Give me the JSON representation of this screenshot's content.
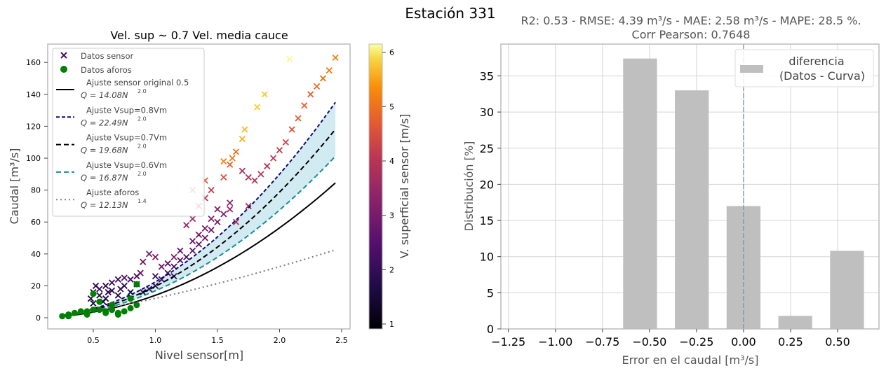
{
  "suptitle": "Estación 331",
  "chart_data": [
    {
      "type": "scatter",
      "title": "Vel. sup ~ 0.7 Vel. media cauce",
      "xlabel": "Nivel sensor[m]",
      "ylabel": "Caudal [m³/s]",
      "xlim": [
        0.133,
        2.568
      ],
      "ylim": [
        -7,
        171.5
      ],
      "xticks": [
        0.5,
        1.0,
        1.5,
        2.0,
        2.5
      ],
      "xtick_labels": [
        "0.5",
        "1.0",
        "1.5",
        "2.0",
        "2.5"
      ],
      "yticks": [
        0,
        20,
        40,
        60,
        80,
        100,
        120,
        140,
        160
      ],
      "ytick_labels": [
        "0",
        "20",
        "40",
        "60",
        "80",
        "100",
        "120",
        "140",
        "160"
      ],
      "colorbar": {
        "label": "V. superficial sensor [m/s]",
        "range": [
          0.91,
          6.15
        ],
        "ticks": [
          1,
          2,
          3,
          4,
          5,
          6
        ],
        "tick_labels": [
          "1",
          "2",
          "3",
          "4",
          "5",
          "6"
        ],
        "colormap": "inferno"
      },
      "legend_position": "upper-left",
      "legend": [
        {
          "label": "Datos sensor"
        },
        {
          "label": "Datos aforos"
        },
        {
          "label": "Ajuste sensor original 0.5",
          "eq": "Q = 14.08N",
          "exp": "2.0"
        },
        {
          "label": "Ajuste Vsup=0.8Vm",
          "eq": "Q = 22.49N",
          "exp": "2.0"
        },
        {
          "label": "Ajuste Vsup=0.7Vm",
          "eq": "Q = 19.68N",
          "exp": "2.0"
        },
        {
          "label": "Ajuste Vsup=0.6Vm",
          "eq": "Q = 16.87N",
          "exp": "2.0"
        },
        {
          "label": "Ajuste aforos",
          "eq": "Q = 12.13N",
          "exp": "1.4"
        }
      ],
      "fits": [
        {
          "name": "sensor-original",
          "a": 14.08,
          "b": 2.0,
          "color": "#000000",
          "dash": "",
          "x_range": [
            0.25,
            2.45
          ]
        },
        {
          "name": "vsup-0.8",
          "a": 22.49,
          "b": 2.0,
          "color": "#0b0b6e",
          "dash": "5,3",
          "x_range": [
            0.25,
            2.45
          ]
        },
        {
          "name": "vsup-0.7",
          "a": 19.68,
          "b": 2.0,
          "color": "#000000",
          "dash": "7,4",
          "x_range": [
            0.25,
            2.45
          ]
        },
        {
          "name": "vsup-0.6",
          "a": 16.87,
          "b": 2.0,
          "color": "#139191",
          "dash": "7,4",
          "x_range": [
            0.25,
            2.45
          ]
        },
        {
          "name": "aforos",
          "a": 12.13,
          "b": 1.4,
          "color": "#808080",
          "dash": "2,4",
          "x_range": [
            0.25,
            2.45
          ]
        }
      ],
      "fill_between": [
        "vsup-0.6",
        "vsup-0.8"
      ],
      "sensor_points": [
        [
          0.48,
          12,
          1.6
        ],
        [
          0.5,
          16,
          1.8
        ],
        [
          0.55,
          18,
          2
        ],
        [
          0.6,
          20,
          2
        ],
        [
          0.65,
          22,
          2.1
        ],
        [
          0.7,
          24,
          2.2
        ],
        [
          0.75,
          25,
          2.3
        ],
        [
          0.8,
          24,
          2.2
        ],
        [
          0.85,
          26,
          2.3
        ],
        [
          0.5,
          9,
          1.4
        ],
        [
          0.6,
          12,
          1.5
        ],
        [
          0.7,
          14,
          1.6
        ],
        [
          0.8,
          16,
          1.7
        ],
        [
          0.9,
          16,
          1.8
        ],
        [
          0.55,
          14,
          1.7
        ],
        [
          0.65,
          17,
          1.9
        ],
        [
          0.75,
          20,
          2.0
        ],
        [
          0.85,
          21,
          2.1
        ],
        [
          0.52,
          20,
          2.0
        ],
        [
          0.62,
          16,
          1.8
        ],
        [
          0.72,
          18,
          1.9
        ],
        [
          0.58,
          10,
          1.5
        ],
        [
          0.95,
          18,
          2
        ],
        [
          1.0,
          20,
          2.1
        ],
        [
          1.05,
          24,
          2.2
        ],
        [
          1.1,
          28,
          2.3
        ],
        [
          1.15,
          32,
          2.4
        ],
        [
          1.2,
          36,
          2.5
        ],
        [
          1.25,
          38,
          2.5
        ],
        [
          1.3,
          42,
          2.6
        ],
        [
          1.35,
          46,
          2.7
        ],
        [
          1.4,
          50,
          2.8
        ],
        [
          1.45,
          55,
          2.9
        ],
        [
          1.5,
          60,
          3.0
        ],
        [
          1.55,
          65,
          3.1
        ],
        [
          1.6,
          72,
          3.3
        ],
        [
          1.2,
          42,
          2.7
        ],
        [
          1.3,
          48,
          2.8
        ],
        [
          1.4,
          56,
          3.0
        ],
        [
          1.5,
          68,
          3.2
        ],
        [
          1.1,
          34,
          2.5
        ],
        [
          1.0,
          26,
          2.3
        ],
        [
          1.15,
          26,
          2.2
        ],
        [
          1.35,
          52,
          2.9
        ],
        [
          1.45,
          62,
          3.1
        ],
        [
          0.88,
          28,
          2.8
        ],
        [
          0.9,
          35,
          2.9
        ],
        [
          0.95,
          40,
          3.0
        ],
        [
          1.0,
          38,
          3.1
        ],
        [
          1.05,
          32,
          2.8
        ],
        [
          1.15,
          38,
          3.2
        ],
        [
          1.25,
          58,
          3.5
        ],
        [
          1.3,
          62,
          3.6
        ],
        [
          1.35,
          70,
          3.8
        ],
        [
          1.4,
          75,
          4.0
        ],
        [
          1.45,
          80,
          4.2
        ],
        [
          1.3,
          80,
          4.6
        ],
        [
          1.4,
          86,
          4.7
        ],
        [
          1.55,
          88,
          4.5
        ],
        [
          1.6,
          96,
          4.8
        ],
        [
          1.65,
          104,
          5.0
        ],
        [
          1.7,
          112,
          5.6
        ],
        [
          1.72,
          118,
          5.7
        ],
        [
          1.82,
          132,
          5.8
        ],
        [
          1.88,
          140,
          5.8
        ],
        [
          2.08,
          162,
          6.1
        ],
        [
          1.55,
          98,
          5.2
        ],
        [
          1.62,
          100,
          5.1
        ],
        [
          1.7,
          92,
          3.8
        ],
        [
          1.75,
          88,
          3.9
        ],
        [
          1.8,
          86,
          4.0
        ],
        [
          1.85,
          90,
          4.0
        ],
        [
          1.9,
          95,
          4.1
        ],
        [
          1.95,
          100,
          4.1
        ],
        [
          2.0,
          105,
          4.2
        ],
        [
          2.05,
          110,
          4.3
        ],
        [
          2.1,
          118,
          4.6
        ],
        [
          2.15,
          125,
          4.7
        ],
        [
          2.2,
          133,
          4.8
        ],
        [
          2.25,
          140,
          4.8
        ],
        [
          2.3,
          145,
          4.9
        ],
        [
          2.35,
          150,
          5.0
        ],
        [
          2.4,
          155,
          5.1
        ],
        [
          2.45,
          163,
          5.2
        ],
        [
          1.65,
          60,
          3.9
        ],
        [
          1.6,
          68,
          3.6
        ],
        [
          1.75,
          70,
          3.8
        ]
      ],
      "aforo_points": [
        [
          0.25,
          1
        ],
        [
          0.3,
          2
        ],
        [
          0.35,
          3
        ],
        [
          0.4,
          4
        ],
        [
          0.45,
          4
        ],
        [
          0.5,
          5
        ],
        [
          0.55,
          5
        ],
        [
          0.6,
          4
        ],
        [
          0.65,
          5
        ],
        [
          0.7,
          3
        ],
        [
          0.75,
          4
        ],
        [
          0.8,
          6
        ],
        [
          0.85,
          8
        ],
        [
          0.85,
          21
        ],
        [
          0.5,
          15
        ],
        [
          0.55,
          10
        ],
        [
          0.45,
          2
        ],
        [
          0.3,
          1
        ],
        [
          0.6,
          3
        ],
        [
          0.7,
          2
        ],
        [
          0.65,
          8
        ],
        [
          0.8,
          12
        ]
      ]
    },
    {
      "type": "bar",
      "title": "R2: 0.53 - RMSE: 4.39 m³/s - MAE: 2.58 m³/s - MAPE: 28.5 %.",
      "subtitle": "Corr Pearson: 0.7648",
      "xlabel": "Error en el caudal  [m³/s]",
      "ylabel": "Distribución [%]",
      "xlim": [
        -1.29,
        0.72
      ],
      "ylim": [
        0,
        39.4
      ],
      "x": [
        -0.55,
        -0.275,
        0.0,
        0.275,
        0.55
      ],
      "bar_width": 0.18,
      "values": [
        37.4,
        33.0,
        17.0,
        1.8,
        10.8
      ],
      "bar_color": "#bfbfbf",
      "vline_x": 0.0,
      "vline_color": "#6a9ab0",
      "xticks": [
        -1.25,
        -1.0,
        -0.75,
        -0.5,
        -0.25,
        0.0,
        0.25,
        0.5
      ],
      "xtick_labels": [
        "−1.25",
        "−1.00",
        "−0.75",
        "−0.50",
        "−0.25",
        "0.00",
        "0.25",
        "0.50"
      ],
      "yticks": [
        0,
        5,
        10,
        15,
        20,
        25,
        30,
        35
      ],
      "ytick_labels": [
        "0",
        "5",
        "10",
        "15",
        "20",
        "25",
        "30",
        "35"
      ],
      "legend": [
        "diferencia",
        "(Datos - Curva)"
      ],
      "legend_position": "upper-right"
    }
  ]
}
